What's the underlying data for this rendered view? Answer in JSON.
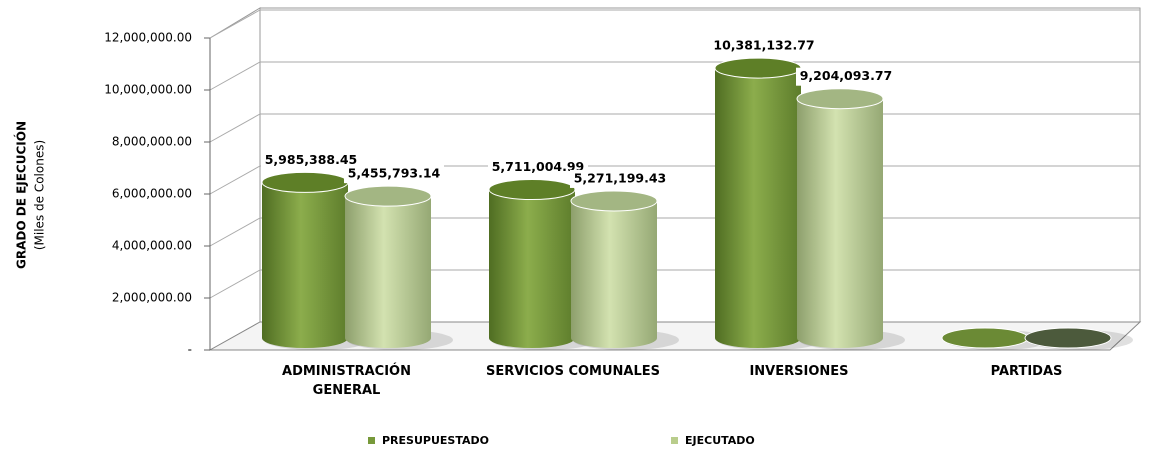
{
  "chart_data": {
    "type": "bar3d",
    "ylabel": [
      "GRADO DE EJECUCIÓN",
      "(Miles de Colones)"
    ],
    "categories": [
      "ADMINISTRACIÓN GENERAL",
      "SERVICIOS COMUNALES",
      "INVERSIONES",
      "PARTIDAS"
    ],
    "series": [
      {
        "name": "PRESUPUESTADO",
        "color": "#77993a",
        "values": [
          5985388.45,
          5711004.99,
          10381132.77,
          0
        ],
        "value_labels": [
          "5,985,388.45",
          "5,711,004.99",
          "10,381,132.77",
          null
        ]
      },
      {
        "name": "EJECUTADO",
        "color": "#b9cd8c",
        "values": [
          5455793.14,
          5271199.43,
          9204093.77,
          0
        ],
        "value_labels": [
          "5,455,793.14",
          "5,271,199.43",
          "9,204,093.77",
          null
        ]
      }
    ],
    "ylim": [
      0,
      12000000
    ],
    "yticks": [
      {
        "value": 0,
        "label": "-"
      },
      {
        "value": 2000000,
        "label": "2,000,000.00"
      },
      {
        "value": 4000000,
        "label": "4,000,000.00"
      },
      {
        "value": 6000000,
        "label": "6,000,000.00"
      },
      {
        "value": 8000000,
        "label": "8,000,000.00"
      },
      {
        "value": 10000000,
        "label": "10,000,000.00"
      },
      {
        "value": 12000000,
        "label": "12,000,000.00"
      }
    ],
    "grid": true,
    "legend": "bottom"
  }
}
